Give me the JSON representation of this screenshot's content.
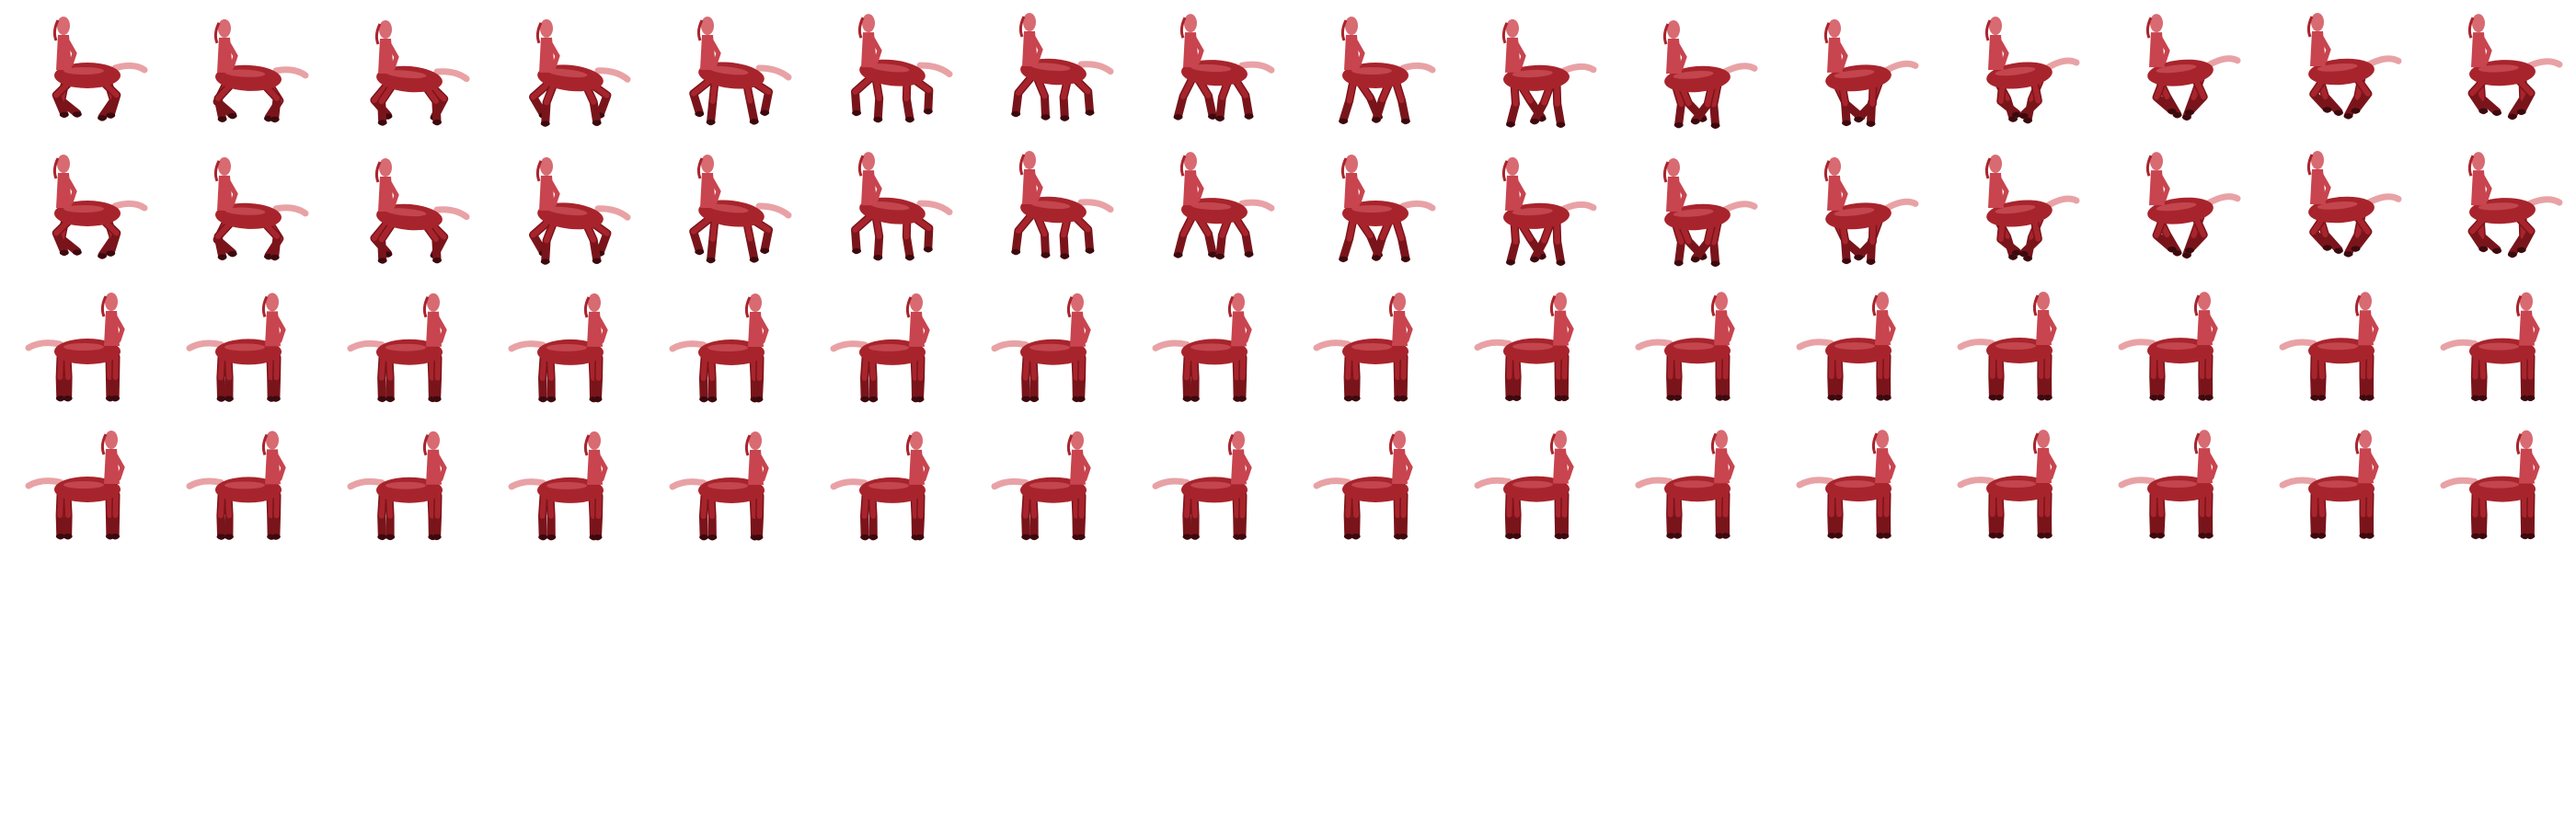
{
  "sprite_sheet": {
    "subject": "red-centaur",
    "colors": {
      "body": "#a8242c",
      "body_dark": "#7a141b",
      "highlight": "#d9606a",
      "torso": "#c8444e",
      "head": "#d86a72",
      "hooves": "#3a0a0e",
      "tail": "#e8a2a6",
      "background": "#ffffff"
    },
    "rows": [
      {
        "animation": "gallop",
        "frame_count": 16
      },
      {
        "animation": "gallop",
        "frame_count": 16
      },
      {
        "animation": "idle",
        "frame_count": 16
      },
      {
        "animation": "idle",
        "frame_count": 16
      }
    ]
  }
}
